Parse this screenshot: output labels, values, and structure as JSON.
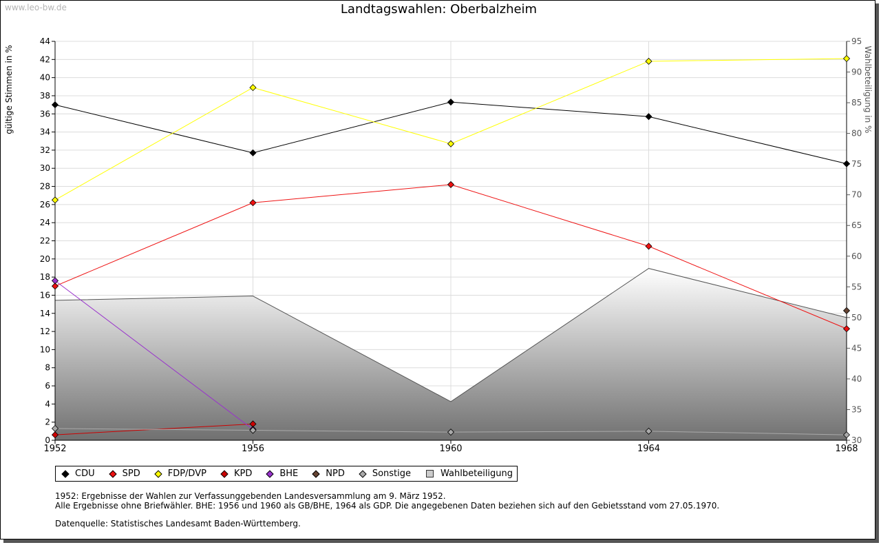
{
  "watermark": "www.leo-bw.de",
  "chart_data": {
    "type": "line",
    "title": "Landtagswahlen: Oberbalzheim",
    "xlabel": "",
    "ylabel": "gültige Stimmen in %",
    "y2label": "Wahlbeteiligung in %",
    "x": [
      1952,
      1956,
      1960,
      1964,
      1968
    ],
    "ylim": [
      0,
      44
    ],
    "y2lim": [
      30,
      95
    ],
    "yticks": [
      0,
      2,
      4,
      6,
      8,
      10,
      12,
      14,
      16,
      18,
      20,
      22,
      24,
      26,
      28,
      30,
      32,
      34,
      36,
      38,
      40,
      42,
      44
    ],
    "y2ticks": [
      30,
      35,
      40,
      45,
      50,
      55,
      60,
      65,
      70,
      75,
      80,
      85,
      90,
      95
    ],
    "grid": true,
    "series": [
      {
        "name": "CDU",
        "color": "#000000",
        "values": [
          37.0,
          31.7,
          37.3,
          35.7,
          30.5
        ]
      },
      {
        "name": "SPD",
        "color": "#ee1111",
        "values": [
          17.0,
          26.2,
          28.2,
          21.4,
          12.3
        ]
      },
      {
        "name": "FDP/DVP",
        "color": "#ffff00",
        "values": [
          26.5,
          38.9,
          32.7,
          41.8,
          42.1
        ]
      },
      {
        "name": "KPD",
        "color": "#cc0000",
        "values": [
          0.6,
          1.8,
          null,
          null,
          null
        ]
      },
      {
        "name": "BHE",
        "color": "#9933cc",
        "values": [
          17.6,
          1.2,
          null,
          null,
          null
        ]
      },
      {
        "name": "NPD",
        "color": "#664433",
        "values": [
          null,
          null,
          null,
          null,
          14.3
        ]
      },
      {
        "name": "Sonstige",
        "color": "#aaaaaa",
        "values": [
          1.3,
          1.1,
          0.9,
          1.0,
          0.6
        ]
      }
    ],
    "turnout": {
      "name": "Wahlbeteiligung",
      "axis": "right",
      "values": [
        52.8,
        53.5,
        36.3,
        58.0,
        50.0
      ]
    },
    "legend_position": "bottom"
  },
  "notes": {
    "line1": "1952: Ergebnisse der Wahlen zur Verfassunggebenden Landesversammlung am 9. März 1952.",
    "line2": "Alle Ergebnisse ohne Briefwähler. BHE: 1956 und 1960 als GB/BHE, 1964 als GDP. Die angegebenen Daten beziehen sich auf den Gebietsstand vom 27.05.1970.",
    "source": "Datenquelle: Statistisches Landesamt Baden-Württemberg."
  }
}
